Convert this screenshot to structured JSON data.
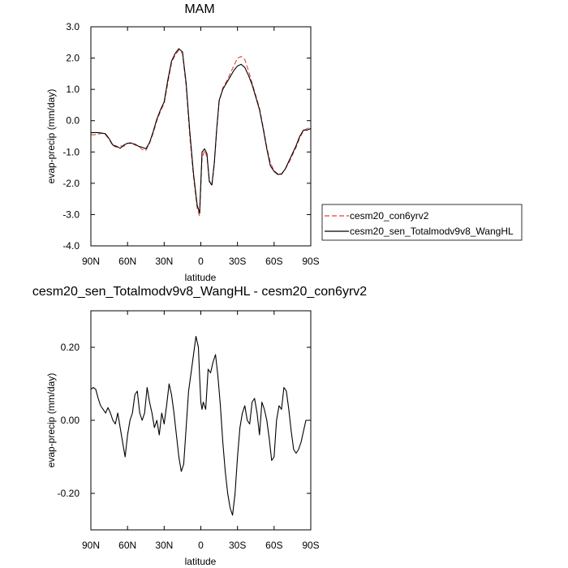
{
  "chart_data": [
    {
      "type": "line",
      "title": "MAM",
      "xlabel": "latitude",
      "ylabel": "evap-precip (mm/day)",
      "xlim": [
        90,
        -90
      ],
      "ylim": [
        -4.0,
        3.0
      ],
      "x_ticks": [
        90,
        60,
        30,
        0,
        -30,
        -60,
        -90
      ],
      "x_tick_labels": [
        "90N",
        "60N",
        "30N",
        "0",
        "30S",
        "60S",
        "90S"
      ],
      "y_ticks": [
        3.0,
        2.0,
        1.0,
        0.0,
        -1.0,
        -2.0,
        -3.0,
        -4.0
      ],
      "y_tick_labels": [
        "3.0",
        "2.0",
        "1.0",
        "0.0",
        "-1.0",
        "-2.0",
        "-3.0",
        "-4.0"
      ],
      "grid": false,
      "legend": "right, outside plot",
      "series": [
        {
          "name": "cesm20_con6yrv2",
          "color": "#e8413c",
          "dash": "dashed",
          "x": [
            90,
            87,
            84,
            81,
            78,
            75,
            72,
            69,
            66,
            63,
            60,
            57,
            54,
            51,
            48,
            45,
            42,
            39,
            36,
            33,
            30,
            27,
            24,
            21,
            18,
            15,
            12,
            9,
            6,
            3,
            1,
            -1,
            -3,
            -5,
            -7,
            -9,
            -11,
            -13,
            -15,
            -18,
            -21,
            -24,
            -27,
            -30,
            -33,
            -36,
            -39,
            -42,
            -45,
            -48,
            -51,
            -54,
            -57,
            -60,
            -63,
            -66,
            -69,
            -72,
            -75,
            -78,
            -81,
            -84,
            -87,
            -90
          ],
          "y": [
            -0.45,
            -0.45,
            -0.43,
            -0.4,
            -0.45,
            -0.6,
            -0.8,
            -0.85,
            -0.8,
            -0.82,
            -0.72,
            -0.7,
            -0.78,
            -0.8,
            -0.92,
            -0.95,
            -0.72,
            -0.4,
            0.0,
            0.3,
            0.55,
            1.2,
            1.85,
            2.1,
            2.25,
            2.15,
            1.1,
            -0.5,
            -1.8,
            -2.8,
            -3.05,
            -1.2,
            -0.95,
            -1.15,
            -1.9,
            -2.1,
            -1.4,
            -0.3,
            0.6,
            1.05,
            1.25,
            1.5,
            1.75,
            2.0,
            2.05,
            1.95,
            1.6,
            1.2,
            0.8,
            0.4,
            -0.2,
            -0.85,
            -1.35,
            -1.6,
            -1.7,
            -1.72,
            -1.55,
            -1.35,
            -1.1,
            -0.85,
            -0.55,
            -0.32,
            -0.25,
            -0.22
          ]
        },
        {
          "name": "cesm20_sen_Totalmodv9v8_WangHL",
          "color": "#000000",
          "dash": "solid",
          "x": [
            90,
            87,
            84,
            81,
            78,
            75,
            72,
            69,
            66,
            63,
            60,
            57,
            54,
            51,
            48,
            45,
            42,
            39,
            36,
            33,
            30,
            27,
            24,
            21,
            18,
            15,
            12,
            9,
            6,
            3,
            1,
            -1,
            -3,
            -5,
            -7,
            -9,
            -11,
            -13,
            -15,
            -18,
            -21,
            -24,
            -27,
            -30,
            -33,
            -36,
            -39,
            -42,
            -45,
            -48,
            -51,
            -54,
            -57,
            -60,
            -63,
            -66,
            -69,
            -72,
            -75,
            -78,
            -81,
            -84,
            -87,
            -90
          ],
          "y": [
            -0.38,
            -0.38,
            -0.38,
            -0.4,
            -0.42,
            -0.58,
            -0.78,
            -0.82,
            -0.88,
            -0.78,
            -0.72,
            -0.72,
            -0.75,
            -0.82,
            -0.85,
            -0.9,
            -0.7,
            -0.35,
            0.05,
            0.35,
            0.6,
            1.3,
            1.9,
            2.15,
            2.3,
            2.2,
            1.2,
            -0.35,
            -1.7,
            -2.7,
            -2.95,
            -1.0,
            -0.9,
            -1.05,
            -1.95,
            -2.05,
            -1.35,
            -0.25,
            0.65,
            1.0,
            1.2,
            1.4,
            1.6,
            1.75,
            1.8,
            1.7,
            1.45,
            1.15,
            0.75,
            0.35,
            -0.25,
            -0.9,
            -1.45,
            -1.62,
            -1.72,
            -1.7,
            -1.55,
            -1.3,
            -1.05,
            -0.8,
            -0.5,
            -0.3,
            -0.3,
            -0.25
          ]
        }
      ]
    },
    {
      "type": "line",
      "title": "cesm20_sen_Totalmodv9v8_WangHL - cesm20_con6yrv2",
      "xlabel": "latitude",
      "ylabel": "evap-precip (mm/day)",
      "xlim": [
        90,
        -90
      ],
      "ylim": [
        -0.3,
        0.3
      ],
      "x_ticks": [
        90,
        60,
        30,
        0,
        -30,
        -60,
        -90
      ],
      "x_tick_labels": [
        "90N",
        "60N",
        "30N",
        "0",
        "30S",
        "60S",
        "90S"
      ],
      "y_ticks": [
        0.2,
        0.0,
        -0.2
      ],
      "y_tick_labels": [
        "0.20",
        "0.00",
        "-0.20"
      ],
      "grid": false,
      "series": [
        {
          "color": "#000000",
          "dash": "solid",
          "x": [
            90,
            88,
            86,
            84,
            82,
            80,
            78,
            76,
            74,
            72,
            70,
            68,
            66,
            64,
            62,
            60,
            58,
            56,
            54,
            52,
            50,
            48,
            46,
            44,
            42,
            40,
            38,
            36,
            34,
            32,
            30,
            28,
            26,
            24,
            22,
            20,
            18,
            16,
            14,
            12,
            10,
            8,
            6,
            4,
            2,
            1,
            0,
            -1,
            -2,
            -4,
            -6,
            -8,
            -10,
            -12,
            -14,
            -16,
            -18,
            -20,
            -22,
            -24,
            -26,
            -28,
            -30,
            -32,
            -34,
            -36,
            -38,
            -40,
            -42,
            -44,
            -46,
            -48,
            -50,
            -52,
            -54,
            -56,
            -58,
            -60,
            -62,
            -64,
            -66,
            -68,
            -70,
            -72,
            -74,
            -76,
            -78,
            -80,
            -82,
            -84,
            -86,
            -88,
            -90
          ],
          "y": [
            0.085,
            0.09,
            0.085,
            0.06,
            0.04,
            0.03,
            0.02,
            0.035,
            0.02,
            0.0,
            -0.01,
            0.02,
            -0.02,
            -0.06,
            -0.1,
            -0.04,
            0.0,
            0.02,
            0.07,
            0.08,
            0.02,
            0.0,
            0.02,
            0.09,
            0.05,
            0.02,
            -0.02,
            0.0,
            -0.04,
            0.02,
            -0.01,
            0.04,
            0.1,
            0.07,
            0.02,
            -0.04,
            -0.1,
            -0.14,
            -0.12,
            -0.02,
            0.08,
            0.13,
            0.18,
            0.23,
            0.2,
            0.12,
            0.05,
            0.03,
            0.05,
            0.03,
            0.14,
            0.13,
            0.16,
            0.18,
            0.12,
            0.04,
            -0.06,
            -0.14,
            -0.2,
            -0.24,
            -0.26,
            -0.2,
            -0.1,
            -0.02,
            0.02,
            0.04,
            0.0,
            -0.01,
            0.05,
            0.06,
            0.02,
            -0.04,
            0.05,
            0.03,
            0.0,
            -0.05,
            -0.11,
            -0.1,
            0.0,
            0.04,
            0.03,
            0.09,
            0.08,
            0.03,
            -0.03,
            -0.08,
            -0.09,
            -0.08,
            -0.06,
            -0.03,
            0.0,
            0.0,
            0.0
          ]
        }
      ]
    }
  ],
  "legend": {
    "items": [
      {
        "label": "cesm20_con6yrv2"
      },
      {
        "label": "cesm20_sen_Totalmodv9v8_WangHL"
      }
    ]
  }
}
